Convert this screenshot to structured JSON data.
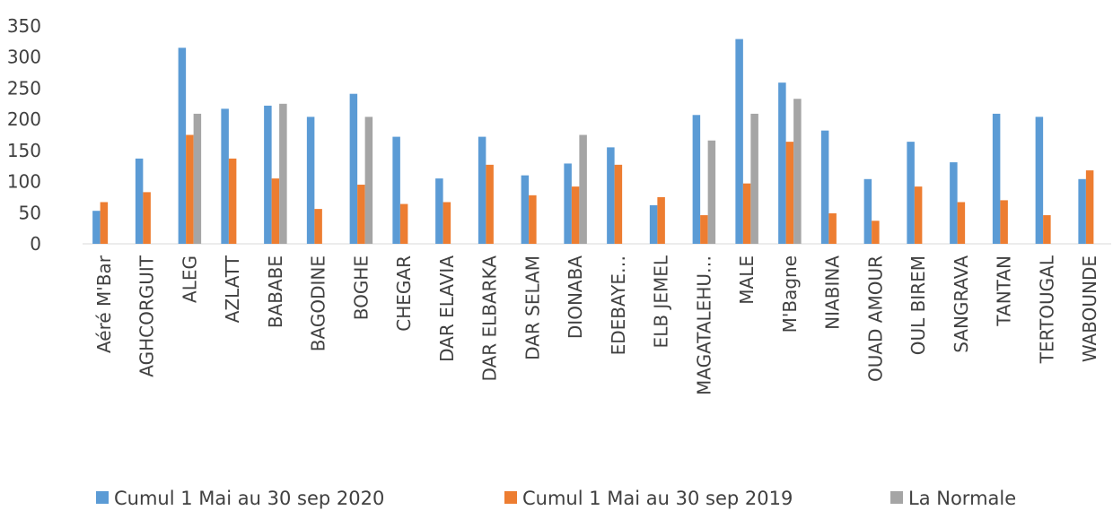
{
  "chart_data": {
    "type": "bar",
    "categories": [
      "Aéré M'Bar",
      "AGHCORGUIT",
      "ALEG",
      "AZLATT",
      "BABABE",
      "BAGODINE",
      "BOGHE",
      "CHEGAR",
      "DAR ELAVIA",
      "DAR ELBARKA",
      "DAR SELAM",
      "DIONABA",
      "EDEBAYE…",
      "ELB JEMEL",
      "MAGATALEHU…",
      "MALE",
      "M'Bagne",
      "NIABINA",
      "OUAD AMOUR",
      "OUL BIREM",
      "SANGRAVA",
      "TANTAN",
      "TERTOUGAL",
      "WABOUNDE"
    ],
    "series": [
      {
        "name": "Cumul 1 Mai au 30 sep 2020",
        "color": "#5b9bd5",
        "values": [
          53,
          137,
          315,
          217,
          222,
          204,
          241,
          172,
          105,
          172,
          110,
          129,
          155,
          62,
          207,
          329,
          259,
          182,
          104,
          164,
          131,
          209,
          204,
          104
        ]
      },
      {
        "name": "Cumul 1 Mai au 30 sep 2019",
        "color": "#ed7d31",
        "values": [
          67,
          83,
          175,
          137,
          105,
          56,
          95,
          64,
          67,
          127,
          78,
          92,
          127,
          75,
          46,
          97,
          164,
          49,
          37,
          92,
          67,
          70,
          46,
          118
        ]
      },
      {
        "name": "La Normale",
        "color": "#a5a5a5",
        "values": [
          null,
          null,
          209,
          null,
          225,
          null,
          204,
          null,
          null,
          null,
          null,
          175,
          null,
          null,
          166,
          209,
          233,
          null,
          null,
          null,
          null,
          null,
          null,
          null
        ]
      }
    ],
    "ylim": [
      0,
      350
    ],
    "yticks": [
      0,
      50,
      100,
      150,
      200,
      250,
      300,
      350
    ],
    "grid": false,
    "legend": "bottom"
  }
}
